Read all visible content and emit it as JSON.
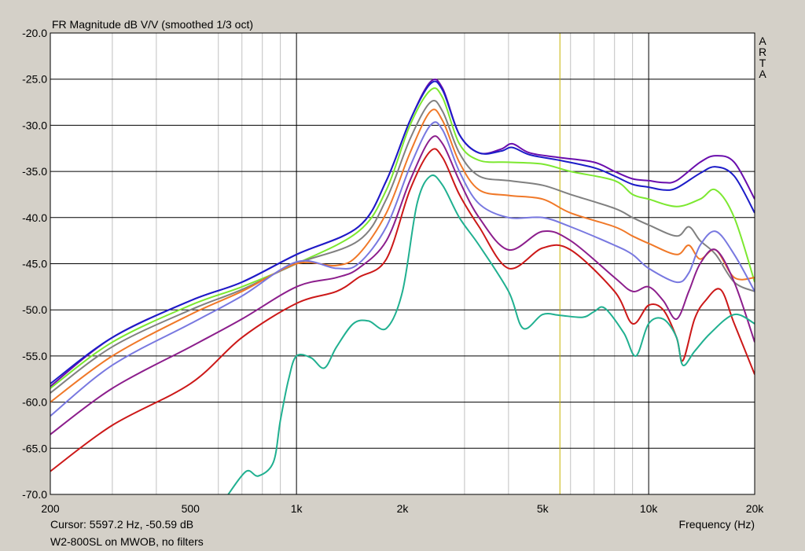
{
  "chart_data": {
    "type": "line",
    "title": "FR Magnitude dB V/V (smoothed 1/3 oct)",
    "xlabel": "Frequency (Hz)",
    "ylabel": "",
    "xscale": "log",
    "xlim": [
      200,
      20000
    ],
    "ylim": [
      -70,
      -20
    ],
    "grid": true,
    "y_ticks": [
      {
        "v": -20,
        "label": "-20.0"
      },
      {
        "v": -25,
        "label": "-25.0"
      },
      {
        "v": -30,
        "label": "-30.0"
      },
      {
        "v": -35,
        "label": "-35.0"
      },
      {
        "v": -40,
        "label": "-40.0"
      },
      {
        "v": -45,
        "label": "-45.0"
      },
      {
        "v": -50,
        "label": "-50.0"
      },
      {
        "v": -55,
        "label": "-55.0"
      },
      {
        "v": -60,
        "label": "-60.0"
      },
      {
        "v": -65,
        "label": "-65.0"
      },
      {
        "v": -70,
        "label": "-70.0"
      }
    ],
    "x_ticks": [
      {
        "v": 200,
        "label": "200"
      },
      {
        "v": 500,
        "label": "500"
      },
      {
        "v": 1000,
        "label": "1k"
      },
      {
        "v": 2000,
        "label": "2k"
      },
      {
        "v": 5000,
        "label": "5k"
      },
      {
        "v": 10000,
        "label": "10k"
      },
      {
        "v": 20000,
        "label": "20k"
      }
    ],
    "minor_x_grid": [
      300,
      400,
      600,
      700,
      800,
      900,
      3000,
      4000,
      6000,
      7000,
      8000,
      9000
    ],
    "major_x_grid": [
      1000,
      10000
    ],
    "cursor_freq": 5597.2,
    "cursor_color": "#c8b400",
    "series": [
      {
        "color": "#6a0dad",
        "points": [
          [
            200,
            -58.3
          ],
          [
            300,
            -53
          ],
          [
            500,
            -49
          ],
          [
            700,
            -47
          ],
          [
            1000,
            -44
          ],
          [
            1500,
            -41
          ],
          [
            1800,
            -36
          ],
          [
            2100,
            -29.5
          ],
          [
            2400,
            -25.3
          ],
          [
            2600,
            -26
          ],
          [
            2900,
            -31
          ],
          [
            3300,
            -33
          ],
          [
            3800,
            -32.6
          ],
          [
            4100,
            -32
          ],
          [
            4600,
            -33
          ],
          [
            5600,
            -33.5
          ],
          [
            7000,
            -34
          ],
          [
            8000,
            -35
          ],
          [
            9000,
            -35.8
          ],
          [
            10000,
            -36
          ],
          [
            11000,
            -36.2
          ],
          [
            12000,
            -36
          ],
          [
            14000,
            -34
          ],
          [
            15500,
            -33.3
          ],
          [
            17500,
            -34
          ],
          [
            20000,
            -38
          ]
        ]
      },
      {
        "color": "#1c1cc8",
        "points": [
          [
            200,
            -58
          ],
          [
            300,
            -53
          ],
          [
            500,
            -49
          ],
          [
            700,
            -47
          ],
          [
            1000,
            -44
          ],
          [
            1500,
            -41
          ],
          [
            1800,
            -36
          ],
          [
            2100,
            -29.5
          ],
          [
            2400,
            -25.5
          ],
          [
            2600,
            -26.2
          ],
          [
            2900,
            -31
          ],
          [
            3300,
            -33
          ],
          [
            3800,
            -32.8
          ],
          [
            4100,
            -32.4
          ],
          [
            4600,
            -33.2
          ],
          [
            5600,
            -33.8
          ],
          [
            7000,
            -34.6
          ],
          [
            8000,
            -35.5
          ],
          [
            9000,
            -36.4
          ],
          [
            10000,
            -36.7
          ],
          [
            11000,
            -37
          ],
          [
            12000,
            -36.8
          ],
          [
            14000,
            -35.2
          ],
          [
            15500,
            -34.5
          ],
          [
            17500,
            -35.5
          ],
          [
            20000,
            -39.5
          ]
        ]
      },
      {
        "color": "#7ce830",
        "points": [
          [
            200,
            -58.5
          ],
          [
            300,
            -53.5
          ],
          [
            500,
            -49.5
          ],
          [
            700,
            -47.5
          ],
          [
            1000,
            -45
          ],
          [
            1500,
            -41.5
          ],
          [
            1800,
            -37
          ],
          [
            2100,
            -30
          ],
          [
            2400,
            -26.2
          ],
          [
            2600,
            -27
          ],
          [
            2900,
            -32
          ],
          [
            3300,
            -33.8
          ],
          [
            4000,
            -34
          ],
          [
            5000,
            -34.2
          ],
          [
            6000,
            -35
          ],
          [
            8000,
            -36
          ],
          [
            9000,
            -37.5
          ],
          [
            10000,
            -38
          ],
          [
            12000,
            -38.8
          ],
          [
            14000,
            -38
          ],
          [
            15500,
            -37
          ],
          [
            17500,
            -40
          ],
          [
            20000,
            -47
          ]
        ]
      },
      {
        "color": "#808080",
        "points": [
          [
            200,
            -59
          ],
          [
            300,
            -54
          ],
          [
            500,
            -50
          ],
          [
            700,
            -47.8
          ],
          [
            1000,
            -45
          ],
          [
            1500,
            -42.5
          ],
          [
            1800,
            -38
          ],
          [
            2100,
            -31.5
          ],
          [
            2400,
            -27.5
          ],
          [
            2600,
            -28.5
          ],
          [
            2900,
            -33
          ],
          [
            3300,
            -35.5
          ],
          [
            4000,
            -36
          ],
          [
            5000,
            -36.5
          ],
          [
            6000,
            -37.5
          ],
          [
            8000,
            -39
          ],
          [
            9000,
            -40
          ],
          [
            10000,
            -40.8
          ],
          [
            12000,
            -42
          ],
          [
            13000,
            -41
          ],
          [
            14000,
            -42.5
          ],
          [
            15500,
            -44
          ],
          [
            17500,
            -47
          ],
          [
            20000,
            -48
          ]
        ]
      },
      {
        "color": "#f07828",
        "points": [
          [
            200,
            -60
          ],
          [
            300,
            -55
          ],
          [
            500,
            -50.5
          ],
          [
            700,
            -48
          ],
          [
            1000,
            -45
          ],
          [
            1300,
            -45.2
          ],
          [
            1500,
            -44
          ],
          [
            1800,
            -39.5
          ],
          [
            2100,
            -33
          ],
          [
            2400,
            -28.5
          ],
          [
            2600,
            -29.5
          ],
          [
            2900,
            -34
          ],
          [
            3300,
            -37
          ],
          [
            4000,
            -37.6
          ],
          [
            5000,
            -38
          ],
          [
            6000,
            -39.5
          ],
          [
            8000,
            -41
          ],
          [
            9000,
            -42
          ],
          [
            10000,
            -42.8
          ],
          [
            12000,
            -44
          ],
          [
            13000,
            -43
          ],
          [
            14000,
            -44.5
          ],
          [
            15500,
            -43.5
          ],
          [
            17500,
            -46.5
          ],
          [
            20000,
            -46.5
          ]
        ]
      },
      {
        "color": "#7878e0",
        "points": [
          [
            200,
            -61.5
          ],
          [
            300,
            -56
          ],
          [
            500,
            -51.5
          ],
          [
            700,
            -48.5
          ],
          [
            1000,
            -44.8
          ],
          [
            1300,
            -45.5
          ],
          [
            1500,
            -45
          ],
          [
            1800,
            -41
          ],
          [
            2100,
            -34.5
          ],
          [
            2400,
            -30
          ],
          [
            2600,
            -30.5
          ],
          [
            2900,
            -35
          ],
          [
            3300,
            -38.5
          ],
          [
            4000,
            -40
          ],
          [
            5000,
            -40
          ],
          [
            6000,
            -41
          ],
          [
            8000,
            -43
          ],
          [
            9000,
            -44
          ],
          [
            10000,
            -45.5
          ],
          [
            12000,
            -47
          ],
          [
            13000,
            -46
          ],
          [
            14000,
            -43
          ],
          [
            15500,
            -41.5
          ],
          [
            17500,
            -44
          ],
          [
            20000,
            -48
          ]
        ]
      },
      {
        "color": "#8c1e8c",
        "points": [
          [
            200,
            -63.5
          ],
          [
            300,
            -58.5
          ],
          [
            500,
            -54
          ],
          [
            700,
            -51
          ],
          [
            1000,
            -47.5
          ],
          [
            1300,
            -46.5
          ],
          [
            1500,
            -45.5
          ],
          [
            1800,
            -42.5
          ],
          [
            2100,
            -36
          ],
          [
            2400,
            -31.5
          ],
          [
            2600,
            -32
          ],
          [
            2900,
            -36
          ],
          [
            3300,
            -40
          ],
          [
            4000,
            -43.5
          ],
          [
            5000,
            -41.5
          ],
          [
            6000,
            -42.5
          ],
          [
            8000,
            -46.5
          ],
          [
            9000,
            -48
          ],
          [
            10000,
            -47.5
          ],
          [
            11000,
            -49
          ],
          [
            12000,
            -51
          ],
          [
            13000,
            -48
          ],
          [
            14000,
            -45
          ],
          [
            15500,
            -43.5
          ],
          [
            17500,
            -47
          ],
          [
            20000,
            -53.5
          ]
        ]
      },
      {
        "color": "#cc1818",
        "points": [
          [
            200,
            -67.5
          ],
          [
            300,
            -62.5
          ],
          [
            500,
            -58
          ],
          [
            700,
            -53
          ],
          [
            1000,
            -49.3
          ],
          [
            1300,
            -48
          ],
          [
            1500,
            -46.5
          ],
          [
            1800,
            -44.5
          ],
          [
            2100,
            -37
          ],
          [
            2400,
            -32.8
          ],
          [
            2600,
            -33.5
          ],
          [
            2900,
            -37.5
          ],
          [
            3300,
            -41
          ],
          [
            4000,
            -45.5
          ],
          [
            5000,
            -43.3
          ],
          [
            6000,
            -43.5
          ],
          [
            8000,
            -48
          ],
          [
            9000,
            -51.5
          ],
          [
            10000,
            -49.5
          ],
          [
            11000,
            -50
          ],
          [
            12000,
            -53
          ],
          [
            12500,
            -55.5
          ],
          [
            13500,
            -51
          ],
          [
            14500,
            -49
          ],
          [
            16000,
            -47.8
          ],
          [
            17500,
            -51.5
          ],
          [
            20000,
            -57
          ]
        ]
      },
      {
        "color": "#20b090",
        "points": [
          [
            640,
            -70
          ],
          [
            720,
            -67.5
          ],
          [
            780,
            -68
          ],
          [
            860,
            -66.5
          ],
          [
            900,
            -62
          ],
          [
            950,
            -57.5
          ],
          [
            1000,
            -55
          ],
          [
            1100,
            -55.2
          ],
          [
            1200,
            -56.3
          ],
          [
            1300,
            -54
          ],
          [
            1450,
            -51.5
          ],
          [
            1600,
            -51.2
          ],
          [
            1800,
            -52
          ],
          [
            2000,
            -48
          ],
          [
            2200,
            -38.5
          ],
          [
            2400,
            -35.5
          ],
          [
            2600,
            -36.5
          ],
          [
            2900,
            -40
          ],
          [
            3300,
            -43
          ],
          [
            4000,
            -48
          ],
          [
            4400,
            -52
          ],
          [
            5000,
            -50.5
          ],
          [
            5600,
            -50.6
          ],
          [
            6500,
            -50.8
          ],
          [
            7000,
            -50.2
          ],
          [
            7500,
            -49.8
          ],
          [
            8500,
            -52.5
          ],
          [
            9200,
            -55
          ],
          [
            10000,
            -51.5
          ],
          [
            11000,
            -51
          ],
          [
            12000,
            -53
          ],
          [
            12500,
            -56
          ],
          [
            13500,
            -54.5
          ],
          [
            15000,
            -52.5
          ],
          [
            17500,
            -50.5
          ],
          [
            20000,
            -51.5
          ]
        ]
      }
    ],
    "arta_letters": [
      "A",
      "R",
      "T",
      "A"
    ],
    "cursor_readout": "Cursor: 5597.2 Hz, -50.59 dB",
    "caption": "W2-800SL on MWOB, no filters"
  }
}
